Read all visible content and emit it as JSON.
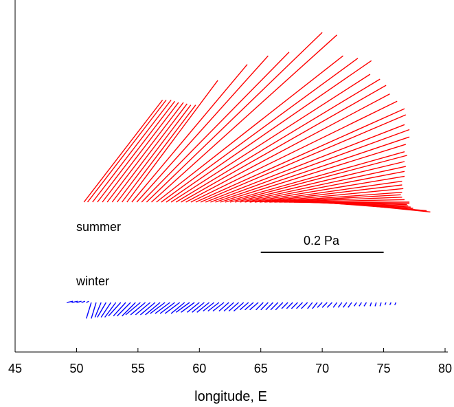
{
  "chart_data": {
    "type": "vector-stick",
    "title": "",
    "xlabel": "longitude, E",
    "ylabel": "",
    "xlim": [
      45,
      80
    ],
    "xticks": [
      45,
      50,
      55,
      60,
      65,
      70,
      75,
      80
    ],
    "xtick_labels": [
      "45",
      "50",
      "55",
      "60",
      "65",
      "70",
      "75",
      "80"
    ],
    "grid": false,
    "annotations": {
      "summer": "summer",
      "winter": "winter",
      "scale_label": "0.2 Pa",
      "scale_value_pa": 0.2,
      "scale_length_deg": 10
    },
    "series": [
      {
        "name": "summer",
        "color": "#ff0000",
        "x0": [
          50.6,
          50.9,
          51.3,
          51.7,
          52.1,
          52.5,
          52.9,
          53.3,
          53.7,
          54.1,
          54.5,
          54.9,
          55.3,
          55.7,
          56.1,
          56.5,
          56.9,
          57.3,
          57.7,
          58.1,
          58.5,
          58.9,
          59.3,
          59.7,
          60.1,
          60.5,
          60.9,
          61.3,
          61.7,
          62.1,
          62.5,
          62.9,
          63.3,
          63.7,
          64.1,
          64.5,
          64.9,
          65.3,
          65.7,
          66.1,
          66.5,
          66.9,
          67.3,
          67.7,
          68.1,
          68.5,
          68.9,
          69.3,
          69.7,
          70.1,
          70.5,
          70.9
        ],
        "u": [
          0.128,
          0.128,
          0.128,
          0.126,
          0.124,
          0.124,
          0.122,
          0.12,
          0.12,
          0.148,
          0.188,
          0.214,
          0.24,
          0.286,
          0.302,
          0.304,
          0.32,
          0.334,
          0.324,
          0.332,
          0.334,
          0.332,
          0.336,
          0.34,
          0.334,
          0.324,
          0.324,
          0.316,
          0.302,
          0.292,
          0.288,
          0.276,
          0.27,
          0.26,
          0.252,
          0.24,
          0.232,
          0.226,
          0.216,
          0.206,
          0.2,
          0.196,
          0.196,
          0.188,
          0.176,
          0.17,
          0.166,
          0.162,
          0.154,
          0.148,
          0.16,
          0.158
        ],
        "v": [
          0.166,
          0.166,
          0.166,
          0.164,
          0.162,
          0.162,
          0.16,
          0.158,
          0.158,
          0.198,
          0.224,
          0.238,
          0.244,
          0.276,
          0.272,
          0.238,
          0.234,
          0.23,
          0.208,
          0.2,
          0.19,
          0.176,
          0.164,
          0.152,
          0.142,
          0.126,
          0.118,
          0.106,
          0.094,
          0.082,
          0.076,
          0.066,
          0.058,
          0.05,
          0.042,
          0.034,
          0.028,
          0.022,
          0.016,
          0.012,
          0.008,
          0.004,
          0.0,
          -0.002,
          -0.004,
          -0.006,
          -0.008,
          -0.01,
          -0.012,
          -0.012,
          -0.014,
          -0.016
        ]
      },
      {
        "name": "winter",
        "color": "#0000ff",
        "x0": [
          49.2,
          49.6,
          50.0,
          50.4,
          50.8,
          51.2,
          51.6,
          52.0,
          52.4,
          52.8,
          53.2,
          53.6,
          54.0,
          54.4,
          54.8,
          55.2,
          55.6,
          56.0,
          56.4,
          56.8,
          57.2,
          57.6,
          58.0,
          58.4,
          58.8,
          59.2,
          59.6,
          60.0,
          60.4,
          60.8,
          61.2,
          61.6,
          62.0,
          62.4,
          62.8,
          63.2,
          63.6,
          64.0,
          64.4,
          64.8,
          65.2,
          65.6,
          66.0,
          66.4,
          66.8,
          67.2,
          67.6,
          68.0,
          68.4,
          68.8,
          69.2,
          69.6,
          70.0,
          70.4,
          70.8,
          71.2,
          71.6,
          72.0,
          72.4,
          72.8,
          73.2,
          73.6,
          74.0,
          74.4,
          74.8,
          75.2,
          75.6,
          76.0
        ],
        "u": [
          0.01,
          0.01,
          0.008,
          0.006,
          0.004,
          -0.008,
          -0.008,
          -0.01,
          -0.014,
          -0.016,
          -0.018,
          -0.02,
          -0.02,
          -0.022,
          -0.022,
          -0.024,
          -0.024,
          -0.024,
          -0.024,
          -0.024,
          -0.024,
          -0.024,
          -0.024,
          -0.024,
          -0.022,
          -0.022,
          -0.022,
          -0.02,
          -0.02,
          -0.02,
          -0.018,
          -0.018,
          -0.018,
          -0.016,
          -0.016,
          -0.016,
          -0.016,
          -0.014,
          -0.014,
          -0.014,
          -0.012,
          -0.012,
          -0.012,
          -0.012,
          -0.012,
          -0.01,
          -0.01,
          -0.01,
          -0.01,
          -0.01,
          -0.008,
          -0.008,
          -0.008,
          -0.008,
          -0.008,
          -0.006,
          -0.006,
          -0.006,
          -0.006,
          -0.004,
          -0.004,
          -0.004,
          -0.002,
          -0.002,
          -0.002,
          -0.002,
          -0.002,
          -0.002
        ],
        "v": [
          0.002,
          0.002,
          0.002,
          0.002,
          0.002,
          -0.026,
          -0.026,
          -0.024,
          -0.024,
          -0.024,
          -0.024,
          -0.022,
          -0.022,
          -0.022,
          -0.022,
          -0.02,
          -0.02,
          -0.02,
          -0.02,
          -0.02,
          -0.018,
          -0.018,
          -0.018,
          -0.018,
          -0.018,
          -0.016,
          -0.016,
          -0.016,
          -0.016,
          -0.016,
          -0.014,
          -0.014,
          -0.014,
          -0.014,
          -0.014,
          -0.014,
          -0.014,
          -0.012,
          -0.012,
          -0.012,
          -0.012,
          -0.012,
          -0.012,
          -0.012,
          -0.012,
          -0.01,
          -0.01,
          -0.01,
          -0.01,
          -0.01,
          -0.01,
          -0.01,
          -0.008,
          -0.008,
          -0.008,
          -0.008,
          -0.008,
          -0.008,
          -0.008,
          -0.006,
          -0.006,
          -0.006,
          -0.006,
          -0.006,
          -0.006,
          -0.004,
          -0.004,
          -0.004
        ]
      }
    ]
  }
}
